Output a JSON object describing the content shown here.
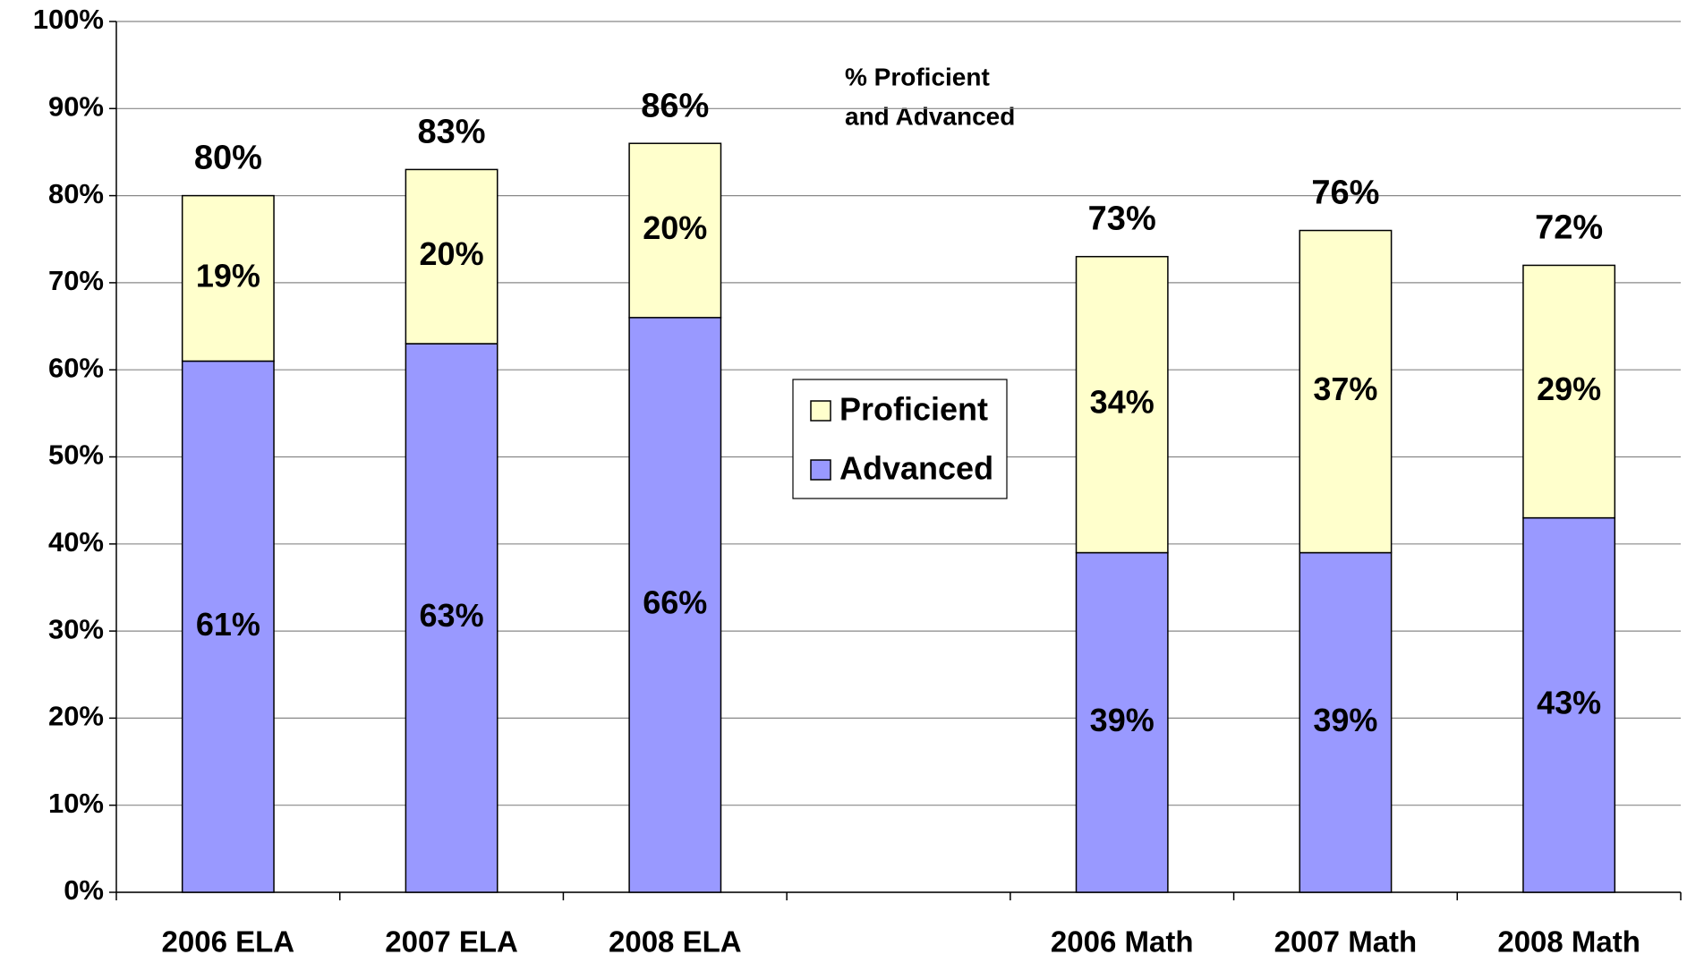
{
  "chart_data": {
    "type": "stacked_bar",
    "categories": [
      "2006 ELA",
      "2007 ELA",
      "2008 ELA",
      null,
      "2006 Math",
      "2007 Math",
      "2008 Math"
    ],
    "series": [
      {
        "name": "Advanced",
        "color": "#9999ff",
        "values": [
          61,
          63,
          66,
          null,
          39,
          39,
          43
        ],
        "value_labels": [
          "61%",
          "63%",
          "66%",
          null,
          "39%",
          "39%",
          "43%"
        ]
      },
      {
        "name": "Proficient",
        "color": "#ffffcc",
        "values": [
          19,
          20,
          20,
          null,
          34,
          37,
          29
        ],
        "value_labels": [
          "19%",
          "20%",
          "20%",
          null,
          "34%",
          "37%",
          "29%"
        ]
      }
    ],
    "total_labels": [
      "80%",
      "83%",
      "86%",
      null,
      "73%",
      "76%",
      "72%"
    ],
    "annotation": [
      "% Proficient",
      "and Advanced"
    ],
    "ylim": [
      0,
      100
    ],
    "yticks": [
      {
        "value": 0,
        "label": "0%"
      },
      {
        "value": 10,
        "label": "10%"
      },
      {
        "value": 20,
        "label": "20%"
      },
      {
        "value": 30,
        "label": "30%"
      },
      {
        "value": 40,
        "label": "40%"
      },
      {
        "value": 50,
        "label": "50%"
      },
      {
        "value": 60,
        "label": "60%"
      },
      {
        "value": 70,
        "label": "70%"
      },
      {
        "value": 80,
        "label": "80%"
      },
      {
        "value": 90,
        "label": "90%"
      },
      {
        "value": 100,
        "label": "100%"
      }
    ],
    "grid": true,
    "legend": "center"
  }
}
